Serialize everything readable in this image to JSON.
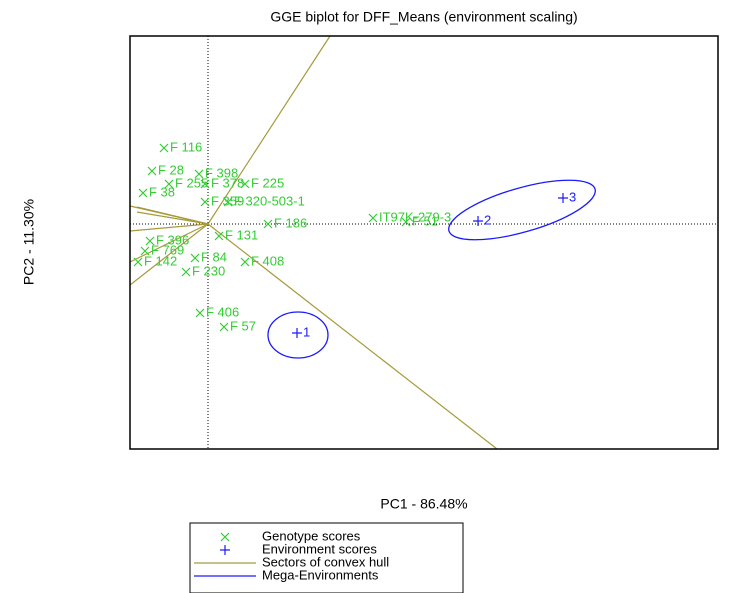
{
  "chart_data": {
    "type": "scatter",
    "title": "GGE biplot for DFF_Means (environment scaling)",
    "x_label": "PC1 - 86.48%",
    "y_label": "PC2 - 11.30%",
    "xlim": [
      -3.9,
      25.5
    ],
    "ylim": [
      -11.25,
      9.4
    ],
    "series": [
      {
        "name": "Genotype scores",
        "color": "#33cc33",
        "labels": [
          "F 116",
          "F 28",
          "F 398",
          "F 255",
          "F 378",
          "F 225",
          "F 38",
          "F 359",
          "F 320-503-1",
          "F 186",
          "IT97K-279-3",
          "F 51",
          "F 131",
          "F 396",
          "F 769",
          "F 84",
          "F 142",
          "F 408",
          "F 230",
          "F 406",
          "F 57"
        ],
        "x": [
          -2.2,
          -2.8,
          -0.45,
          -1.95,
          -0.15,
          1.85,
          -3.25,
          -0.15,
          1.0,
          3.0,
          8.25,
          9.9,
          0.55,
          -2.9,
          -3.15,
          -0.65,
          -3.5,
          1.85,
          -1.1,
          -0.4,
          0.8
        ],
        "y": [
          3.8,
          2.65,
          2.5,
          2.0,
          2.0,
          2.0,
          1.55,
          1.1,
          1.1,
          0,
          0.3,
          0.1,
          -0.6,
          -0.85,
          -1.35,
          -1.7,
          -1.9,
          -1.9,
          -2.4,
          -4.45,
          -5.15
        ]
      },
      {
        "name": "Environment scores",
        "color": "#1a1aff",
        "labels": [
          "1",
          "2",
          "3"
        ],
        "x": [
          4.45,
          13.5,
          17.75
        ],
        "y": [
          -5.45,
          0.15,
          1.3
        ]
      }
    ],
    "overlays": [
      {
        "name": "Sectors of convex hull",
        "color": "#a89a3c"
      },
      {
        "name": "Mega-Environments",
        "color": "#1a1aff"
      }
    ]
  }
}
